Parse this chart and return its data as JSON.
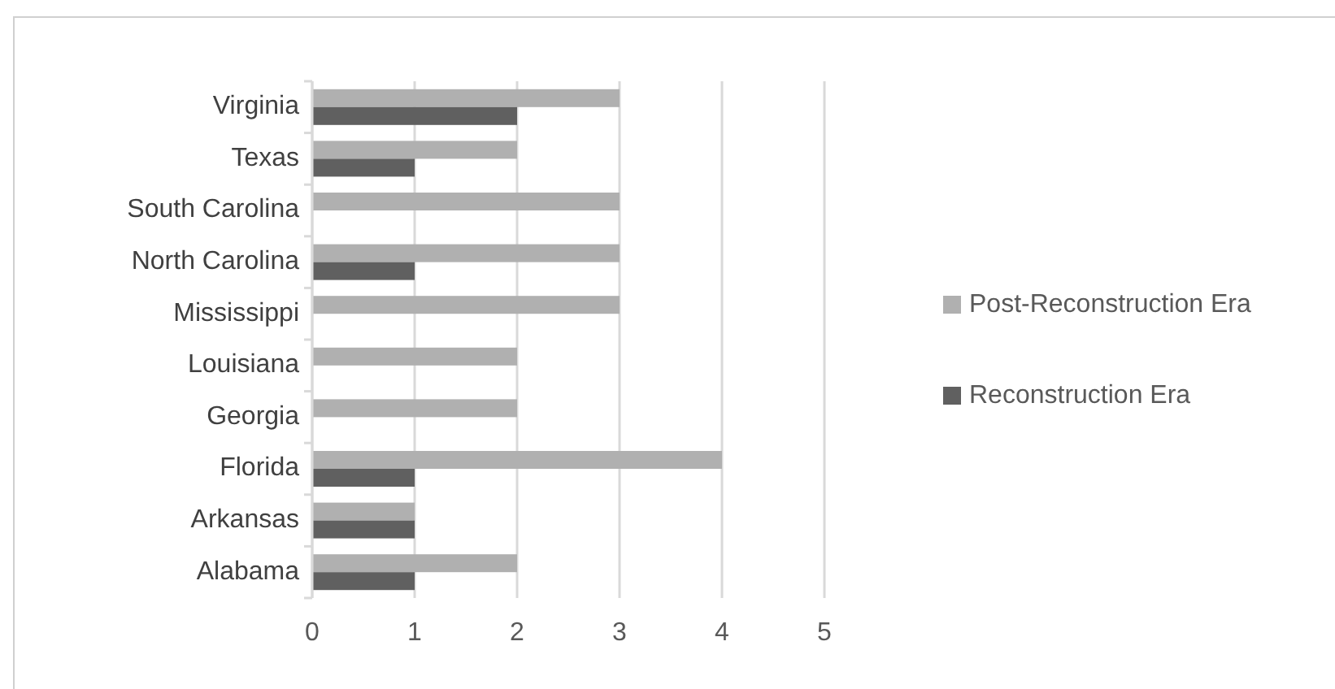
{
  "chart_data": {
    "type": "bar",
    "orientation": "horizontal",
    "categories": [
      "Virginia",
      "Texas",
      "South Carolina",
      "North Carolina",
      "Mississippi",
      "Louisiana",
      "Georgia",
      "Florida",
      "Arkansas",
      "Alabama"
    ],
    "series": [
      {
        "name": "Post-Reconstruction Era",
        "color": "#b0b0b0",
        "values": [
          3,
          2,
          3,
          3,
          3,
          2,
          2,
          4,
          1,
          2
        ]
      },
      {
        "name": "Reconstruction Era",
        "color": "#606060",
        "values": [
          2,
          1,
          null,
          1,
          null,
          null,
          null,
          1,
          1,
          1
        ]
      }
    ],
    "xlim": [
      0,
      5
    ],
    "xticks": [
      0,
      1,
      2,
      3,
      4,
      5
    ],
    "grid": "x",
    "legend": "right"
  }
}
